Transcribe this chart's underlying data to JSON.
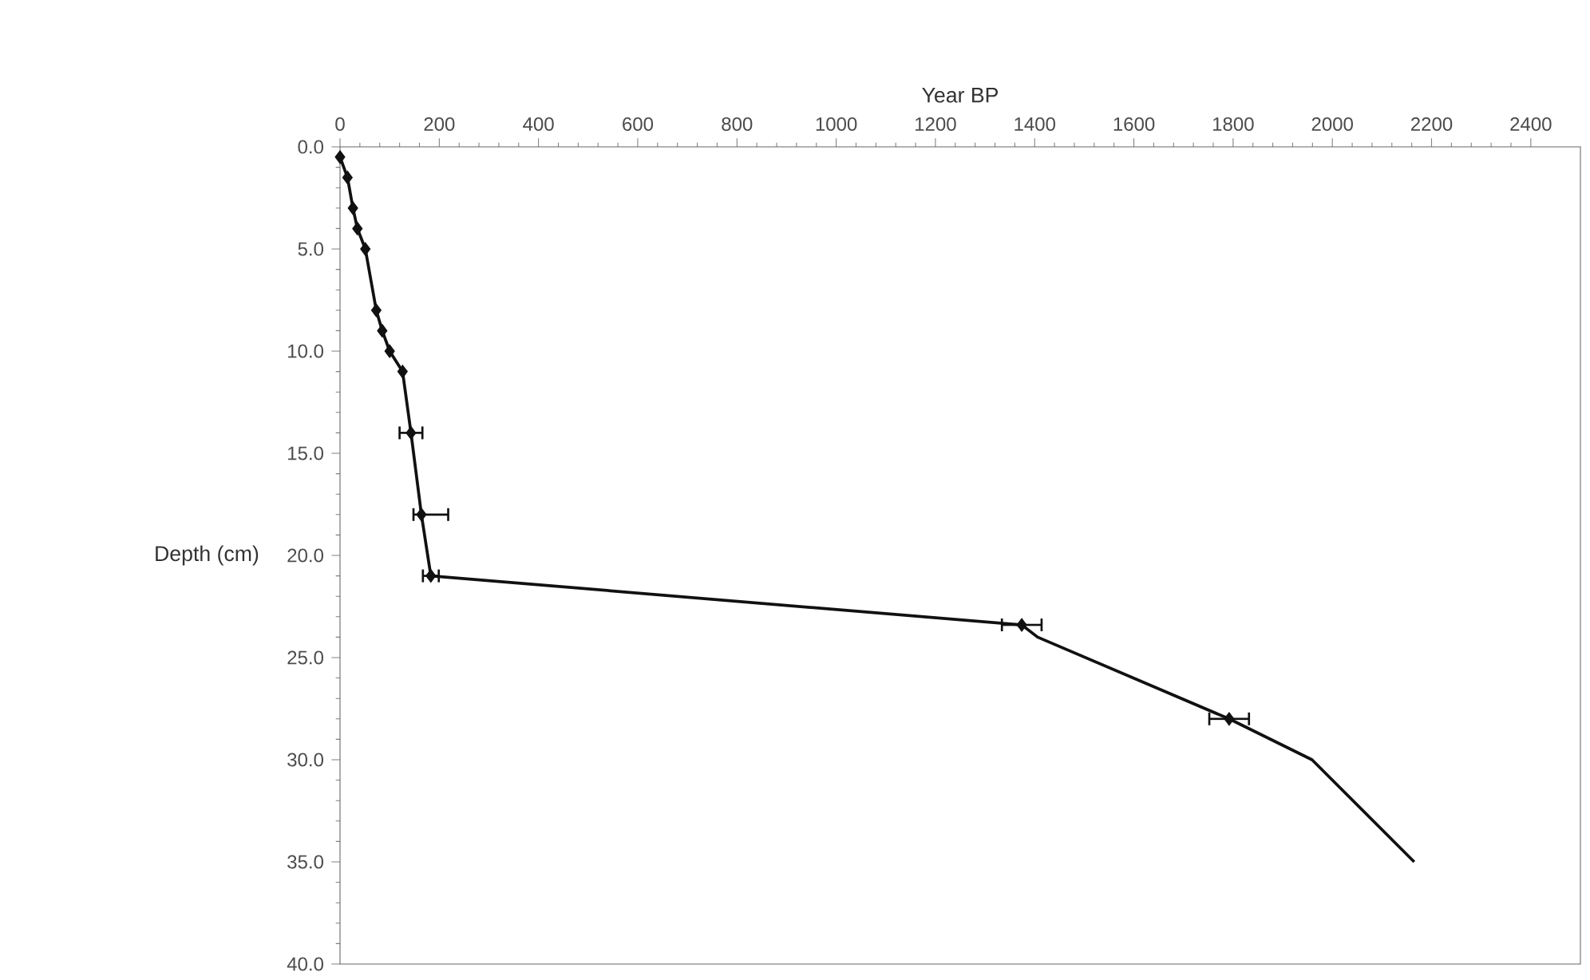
{
  "chart_data": {
    "type": "line",
    "xlabel": "Year BP",
    "ylabel": "Depth (cm)",
    "xlim": [
      0,
      2500
    ],
    "xticks": [
      0,
      200,
      400,
      600,
      800,
      1000,
      1200,
      1400,
      1600,
      1800,
      2000,
      2200,
      2400
    ],
    "ylim": [
      40,
      0
    ],
    "yticks": [
      {
        "value": 0,
        "label": "0.0"
      },
      {
        "value": 5,
        "label": "5.0"
      },
      {
        "value": 10,
        "label": "10.0"
      },
      {
        "value": 15,
        "label": "15.0"
      },
      {
        "value": 20,
        "label": "20.0"
      },
      {
        "value": 25,
        "label": "25.0"
      },
      {
        "value": 30,
        "label": "30.0"
      },
      {
        "value": 35,
        "label": "35.0"
      },
      {
        "value": 40,
        "label": "40.0"
      }
    ],
    "grid": false,
    "series": [
      {
        "marker": "none",
        "color": "#111111",
        "x": [
          0,
          15,
          26,
          35,
          51,
          73,
          85,
          100,
          126,
          143,
          164,
          183,
          1374,
          1406,
          1792,
          1959,
          2165
        ],
        "values": [
          0.5,
          1.5,
          3,
          4,
          5,
          8,
          9,
          10,
          11,
          14,
          18,
          21,
          23.4,
          24,
          28,
          30,
          35
        ]
      },
      {
        "type": "scatter",
        "marker": "diamond",
        "color": "#111111",
        "x": [
          0,
          15,
          26,
          35,
          51,
          73,
          85,
          100,
          126,
          143,
          164,
          183,
          1374,
          1792
        ],
        "values": [
          0.5,
          1.5,
          3,
          4,
          5,
          8,
          9,
          10,
          11,
          14,
          18,
          21,
          23.4,
          28
        ],
        "xerrors": [
          null,
          null,
          null,
          null,
          null,
          null,
          null,
          null,
          null,
          23,
          [
            148,
            218
          ],
          16,
          40,
          40
        ]
      }
    ]
  }
}
